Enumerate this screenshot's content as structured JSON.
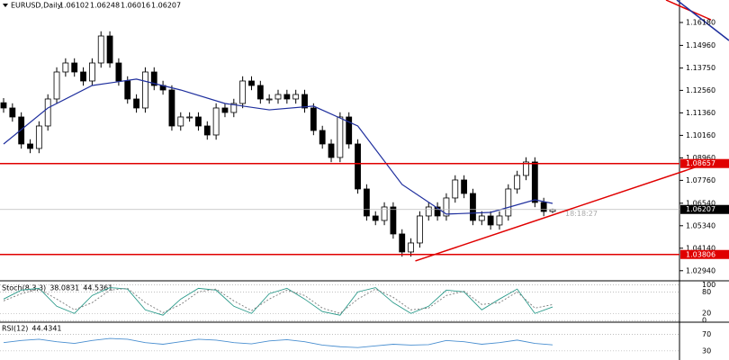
{
  "header": {
    "symbol": "EURUSD,Daily"
  },
  "chart_data": [
    {
      "type": "candlestick",
      "open": [
        1.119,
        1.1162,
        1.1114,
        1.097,
        1.0946,
        1.1066,
        1.121,
        1.1354,
        1.1402,
        1.1354,
        1.1306,
        1.1402,
        1.1546,
        1.1402,
        1.1306,
        1.121,
        1.1162,
        1.1354,
        1.1282,
        1.1258,
        1.1066,
        1.1114,
        1.1114,
        1.1066,
        1.1018,
        1.1162,
        1.1138,
        1.1186,
        1.1306,
        1.1282,
        1.121,
        1.121,
        1.1234,
        1.121,
        1.1234,
        1.1162,
        1.1042,
        1.097,
        1.0898,
        1.1114,
        1.097,
        1.073,
        1.0586,
        1.0562,
        1.0634,
        1.049,
        1.0394,
        1.0442,
        1.0586,
        1.0634,
        1.0586,
        1.0682,
        1.0778,
        1.0706,
        1.0562,
        1.0586,
        1.0538,
        1.0586,
        1.073,
        1.0802,
        1.0874,
        1.0658,
        1.06102
      ],
      "high": [
        1.1215,
        1.1187,
        1.1139,
        1.0995,
        1.1091,
        1.1235,
        1.1379,
        1.1427,
        1.1427,
        1.1379,
        1.1427,
        1.1571,
        1.1571,
        1.1427,
        1.1331,
        1.1235,
        1.1379,
        1.1379,
        1.1307,
        1.1283,
        1.1139,
        1.1139,
        1.1139,
        1.1091,
        1.1187,
        1.1187,
        1.1211,
        1.1331,
        1.1331,
        1.1307,
        1.1235,
        1.1259,
        1.1259,
        1.1259,
        1.1259,
        1.1187,
        1.1067,
        1.0995,
        1.1139,
        1.1139,
        1.0995,
        1.0755,
        1.0611,
        1.0659,
        1.0659,
        1.0515,
        1.0467,
        1.0611,
        1.0659,
        1.0659,
        1.0707,
        1.0803,
        1.0803,
        1.0731,
        1.0611,
        1.0611,
        1.0611,
        1.0755,
        1.0827,
        1.0899,
        1.0899,
        1.0683,
        1.06248
      ],
      "low": [
        1.1137,
        1.1089,
        1.0945,
        1.0921,
        1.0921,
        1.1041,
        1.1185,
        1.1329,
        1.1329,
        1.1281,
        1.1281,
        1.1377,
        1.1377,
        1.1281,
        1.1185,
        1.1137,
        1.1137,
        1.1257,
        1.1233,
        1.1041,
        1.1041,
        1.1089,
        1.1041,
        1.0993,
        1.0993,
        1.1113,
        1.1113,
        1.1161,
        1.1257,
        1.1185,
        1.1185,
        1.1185,
        1.1185,
        1.1185,
        1.1137,
        1.1017,
        1.0945,
        1.0873,
        1.0873,
        1.0945,
        1.0705,
        1.0561,
        1.0537,
        1.0537,
        1.0465,
        1.0369,
        1.0369,
        1.0417,
        1.0561,
        1.0561,
        1.0561,
        1.0657,
        1.0681,
        1.0537,
        1.0537,
        1.0513,
        1.0513,
        1.0561,
        1.0705,
        1.0777,
        1.0633,
        1.0585,
        1.06016
      ],
      "close": [
        1.1162,
        1.1114,
        1.097,
        1.0946,
        1.1066,
        1.121,
        1.1354,
        1.1402,
        1.1354,
        1.1306,
        1.1402,
        1.1546,
        1.1402,
        1.1306,
        1.121,
        1.1162,
        1.1354,
        1.1282,
        1.1258,
        1.1066,
        1.1114,
        1.1114,
        1.1066,
        1.1018,
        1.1162,
        1.1138,
        1.1186,
        1.1306,
        1.1282,
        1.121,
        1.121,
        1.1234,
        1.121,
        1.1234,
        1.1162,
        1.1042,
        1.097,
        1.0898,
        1.1114,
        1.097,
        1.073,
        1.0586,
        1.0562,
        1.0634,
        1.049,
        1.0394,
        1.0442,
        1.0586,
        1.0634,
        1.0586,
        1.0682,
        1.0778,
        1.0706,
        1.0562,
        1.0586,
        1.0538,
        1.0586,
        1.073,
        1.0802,
        1.0874,
        1.0658,
        1.061,
        1.06207
      ],
      "up_color": "#ffffff",
      "down_color": "#000000",
      "wick_color": "#000000",
      "ma": {
        "x": [
          0,
          5,
          10,
          15,
          20,
          25,
          30,
          35,
          40,
          45,
          50,
          55,
          60,
          62
        ],
        "values": [
          1.097,
          1.1162,
          1.1282,
          1.1316,
          1.1258,
          1.1186,
          1.1152,
          1.1172,
          1.1066,
          1.0754,
          1.0596,
          1.0605,
          1.0672,
          1.0653
        ],
        "color": "#1f2f9e"
      },
      "levels": [
        {
          "value": 1.08657,
          "label": "1.08657",
          "color": "#e00000"
        },
        {
          "value": 1.03806,
          "label": "1.03806",
          "color": "#e00000"
        }
      ],
      "trendline": {
        "x": [
          46.5,
          78.5
        ],
        "values": [
          1.0346,
          1.0852
        ],
        "color": "#e00000"
      },
      "time": "18:18:27",
      "ylim": [
        1.0245,
        1.1738
      ],
      "yticks": [
        {
          "value": 1.1618,
          "label": "1.16180"
        },
        {
          "value": 1.1496,
          "label": "1.14960"
        },
        {
          "value": 1.1375,
          "label": "1.13750"
        },
        {
          "value": 1.1256,
          "label": "1.12560"
        },
        {
          "value": 1.1136,
          "label": "1.11360"
        },
        {
          "value": 1.1016,
          "label": "1.10160"
        },
        {
          "value": 1.0896,
          "label": "1.08960"
        },
        {
          "value": 1.0776,
          "label": "1.07760"
        },
        {
          "value": 1.0654,
          "label": "1.06540"
        },
        {
          "value": 1.0534,
          "label": "1.05340"
        },
        {
          "value": 1.0414,
          "label": "1.04140"
        },
        {
          "value": 1.0294,
          "label": "1.02940"
        }
      ]
    },
    {
      "type": "line",
      "title": "Stoch(8,3,3)",
      "x": [
        0,
        2,
        4,
        6,
        8,
        10,
        12,
        14,
        16,
        18,
        20,
        22,
        24,
        26,
        28,
        30,
        32,
        34,
        36,
        38,
        40,
        42,
        44,
        46,
        48,
        50,
        52,
        54,
        56,
        58,
        60,
        62
      ],
      "series": [
        {
          "color": "#2a9a8a",
          "dashed": false,
          "values": [
            60,
            85,
            90,
            40,
            20,
            70,
            92,
            88,
            30,
            15,
            60,
            90,
            85,
            40,
            20,
            75,
            90,
            60,
            25,
            15,
            80,
            92,
            50,
            20,
            40,
            85,
            80,
            30,
            60,
            88,
            20,
            38.0831
          ]
        },
        {
          "color": "#7a7a7a",
          "dashed": true,
          "values": [
            55,
            75,
            88,
            60,
            30,
            50,
            85,
            90,
            50,
            22,
            45,
            80,
            88,
            55,
            28,
            60,
            85,
            70,
            35,
            20,
            60,
            88,
            65,
            30,
            35,
            70,
            82,
            45,
            50,
            80,
            35,
            44.5361
          ]
        }
      ],
      "ylim": [
        -2,
        106
      ],
      "yticks": [
        100,
        80,
        20,
        0
      ]
    },
    {
      "type": "line",
      "title": "RSI(12)",
      "x": [
        0,
        2,
        4,
        6,
        8,
        10,
        12,
        14,
        16,
        18,
        20,
        22,
        24,
        26,
        28,
        30,
        32,
        34,
        36,
        38,
        40,
        42,
        44,
        46,
        48,
        50,
        52,
        54,
        56,
        58,
        60,
        62
      ],
      "series": [
        {
          "color": "#4a8fd0",
          "dashed": false,
          "values": [
            50,
            55,
            58,
            52,
            48,
            55,
            60,
            58,
            50,
            46,
            52,
            58,
            56,
            50,
            47,
            54,
            57,
            52,
            44,
            40,
            38,
            42,
            46,
            44,
            45,
            55,
            52,
            46,
            50,
            56,
            48,
            44.4341
          ]
        }
      ],
      "ylim": [
        8,
        97
      ],
      "yticks": [
        70,
        30
      ]
    }
  ]
}
